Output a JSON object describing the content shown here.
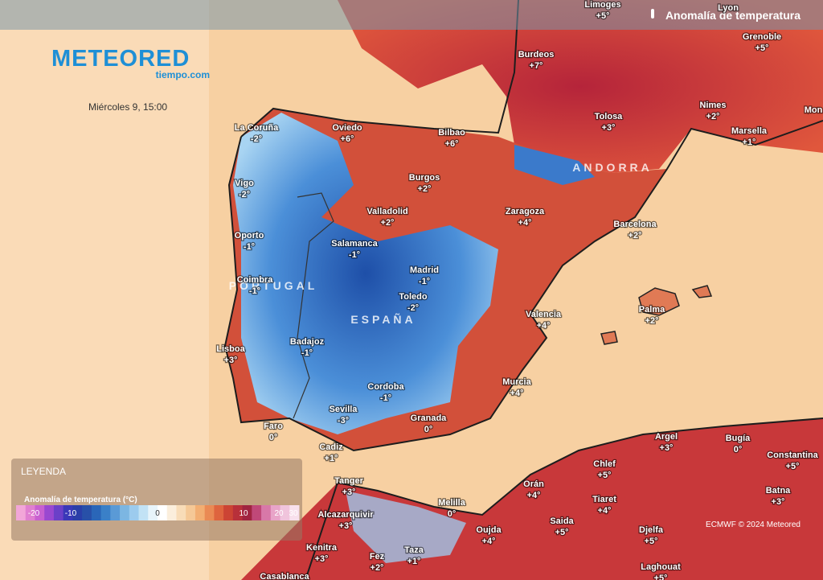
{
  "header": {
    "title": "Anomalía de temperatura",
    "logo": "METEORED",
    "logo_sub": "tiempo.com",
    "date": "Miércoles 9, 15:00"
  },
  "regions": [
    "PORTUGAL",
    "ESPAÑA",
    "ANDORRA"
  ],
  "cities": [
    {
      "name": "Limoges",
      "anomaly": "+5°"
    },
    {
      "name": "Lyon"
    },
    {
      "name": "Grenoble",
      "anomaly": "+5°"
    },
    {
      "name": "Burdeos",
      "anomaly": "+7°"
    },
    {
      "name": "Nimes",
      "anomaly": "+2°"
    },
    {
      "name": "Mon"
    },
    {
      "name": "Tolosa",
      "anomaly": "+3°"
    },
    {
      "name": "Marsella",
      "anomaly": "+1°"
    },
    {
      "name": "La Coruña",
      "anomaly": "-2°"
    },
    {
      "name": "Oviedo",
      "anomaly": "+6°"
    },
    {
      "name": "Bilbao",
      "anomaly": "+6°"
    },
    {
      "name": "Burgos",
      "anomaly": "+2°"
    },
    {
      "name": "Vigo",
      "anomaly": "-2°"
    },
    {
      "name": "Valladolid",
      "anomaly": "+2°"
    },
    {
      "name": "Zaragoza",
      "anomaly": "+4°"
    },
    {
      "name": "Barcelona",
      "anomaly": "+2°"
    },
    {
      "name": "Oporto",
      "anomaly": "-1°"
    },
    {
      "name": "Salamanca",
      "anomaly": "-1°"
    },
    {
      "name": "Madrid",
      "anomaly": "-1°"
    },
    {
      "name": "Coimbra",
      "anomaly": "-1°"
    },
    {
      "name": "Toledo",
      "anomaly": "-2°"
    },
    {
      "name": "Palma",
      "anomaly": "+2°"
    },
    {
      "name": "Valencia",
      "anomaly": "+4°"
    },
    {
      "name": "Badajoz",
      "anomaly": "-1°"
    },
    {
      "name": "Lisboa",
      "anomaly": "+3°"
    },
    {
      "name": "Murcia",
      "anomaly": "+4°"
    },
    {
      "name": "Cordoba",
      "anomaly": "-1°"
    },
    {
      "name": "Sevilla",
      "anomaly": "-3°"
    },
    {
      "name": "Granada",
      "anomaly": "0°"
    },
    {
      "name": "Faro",
      "anomaly": "0°"
    },
    {
      "name": "Argel",
      "anomaly": "+3°"
    },
    {
      "name": "Bugía",
      "anomaly": "0°"
    },
    {
      "name": "Cadiz",
      "anomaly": "+1°"
    },
    {
      "name": "Constantina",
      "anomaly": "+5°"
    },
    {
      "name": "Chlef",
      "anomaly": "+5°"
    },
    {
      "name": "Tanger",
      "anomaly": "+3°"
    },
    {
      "name": "Batna",
      "anomaly": "+3°"
    },
    {
      "name": "Orán",
      "anomaly": "+4°"
    },
    {
      "name": "Melilla",
      "anomaly": "0°"
    },
    {
      "name": "Tiaret",
      "anomaly": "+4°"
    },
    {
      "name": "Alcazarquivir",
      "anomaly": "+3°"
    },
    {
      "name": "Saida",
      "anomaly": "+5°"
    },
    {
      "name": "Oujda",
      "anomaly": "+4°"
    },
    {
      "name": "Djelfa",
      "anomaly": "+5°"
    },
    {
      "name": "Kenitra",
      "anomaly": "+3°"
    },
    {
      "name": "Fez",
      "anomaly": "+2°"
    },
    {
      "name": "Taza",
      "anomaly": "+1°"
    },
    {
      "name": "Laghouat",
      "anomaly": "+5°"
    },
    {
      "name": "Casablanca"
    }
  ],
  "legend": {
    "title": "LEYENDA",
    "subtitle": "Anomalía de temperatura (°C)",
    "ticks": [
      "-20",
      "-10",
      "0",
      "10",
      "20",
      "30"
    ]
  },
  "credit": "ECMWF © 2024 Meteored"
}
